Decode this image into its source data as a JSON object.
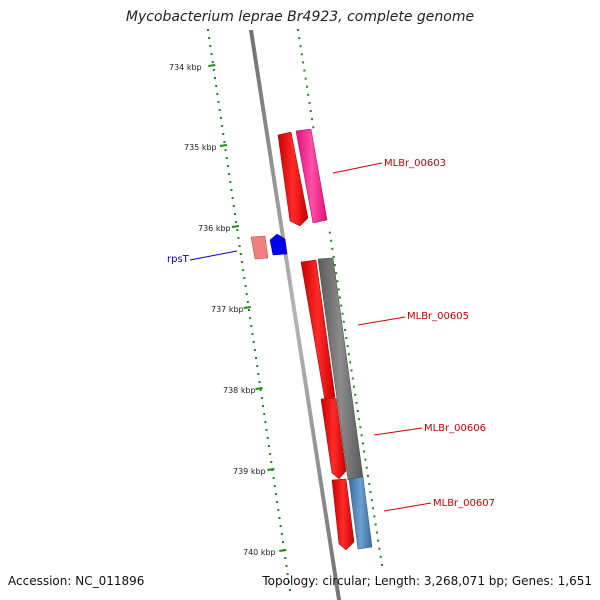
{
  "title": "Mycobacterium leprae Br4923, complete genome",
  "footer": {
    "accession": "Accession: NC_011896",
    "stats": "Topology: circular; Length: 3,268,071 bp; Genes: 1,651"
  },
  "axis": {
    "tick_labels": [
      "734 kbp",
      "735 kbp",
      "736 kbp",
      "737 kbp",
      "738 kbp",
      "739 kbp",
      "740 kbp"
    ],
    "tick_color": "#1a8a1a"
  },
  "colors": {
    "backbone": "#8c8c8c",
    "cds_forward": "#ff0000",
    "rna": "#0000ee",
    "label_red": "#cc0000",
    "label_blue": "#0000cc"
  },
  "features": [
    {
      "label": "MLBr_00603",
      "label_color": "#cc0000",
      "start_kbp": 735.0,
      "end_kbp": 735.85,
      "colors": [
        "#ff0000",
        "#ff3399"
      ]
    },
    {
      "label": "rpsT",
      "label_color": "#0000cc",
      "start_kbp": 736.0,
      "end_kbp": 736.2,
      "colors": [
        "#f08080",
        "#0000ee"
      ]
    },
    {
      "label": "MLBr_00605",
      "label_color": "#cc0000",
      "start_kbp": 736.3,
      "end_kbp": 737.4,
      "colors": [
        "#ff0000",
        "#777777"
      ]
    },
    {
      "label": "MLBr_00606",
      "label_color": "#cc0000",
      "start_kbp": 738.1,
      "end_kbp": 739.0,
      "colors": [
        "#ff0000",
        "#777777"
      ]
    },
    {
      "label": "MLBr_00607",
      "label_color": "#cc0000",
      "start_kbp": 739.1,
      "end_kbp": 739.85,
      "colors": [
        "#ff0000",
        "#4682b4"
      ]
    }
  ]
}
